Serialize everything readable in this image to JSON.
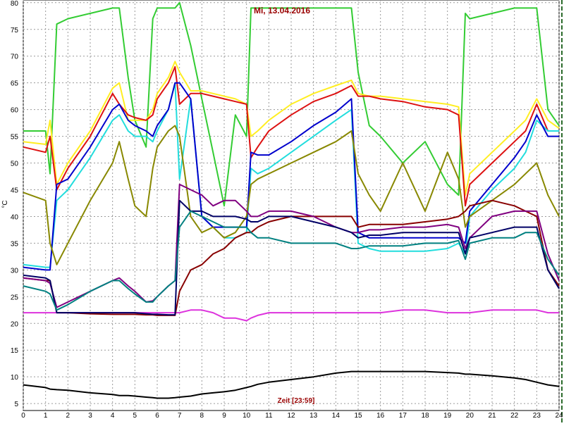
{
  "chart_data": {
    "type": "line",
    "title": "Mi, 13.04.2016",
    "x_label": "Zeit [23:59]",
    "y_label": "°C",
    "xlim": [
      0,
      24
    ],
    "ylim": [
      3.7,
      80.5
    ],
    "xticks": [
      0,
      1,
      2,
      3,
      4,
      5,
      6,
      7,
      8,
      9,
      10,
      11,
      12,
      13,
      14,
      15,
      16,
      17,
      18,
      19,
      20,
      21,
      22,
      23,
      24
    ],
    "yticks": [
      5,
      10,
      15,
      20,
      25,
      30,
      35,
      40,
      45,
      50,
      55,
      60,
      65,
      70,
      75,
      80
    ],
    "grid": true,
    "x": [
      0,
      1,
      1.2,
      1.5,
      2,
      3,
      4,
      4.3,
      4.7,
      5,
      5.5,
      5.8,
      6,
      6.5,
      6.8,
      7,
      7.5,
      8,
      8.5,
      9,
      9.5,
      10,
      10.2,
      10.5,
      11,
      12,
      13,
      14,
      14.7,
      15,
      15.5,
      16,
      17,
      18,
      19,
      19.5,
      19.8,
      20,
      21,
      22,
      22.5,
      23,
      23.5,
      24
    ],
    "series": [
      {
        "color": "#33cc33",
        "values": [
          56,
          56,
          48,
          76,
          77,
          78,
          79,
          79,
          66,
          58,
          53,
          77,
          79,
          79,
          79,
          80,
          72,
          62,
          52,
          42,
          59,
          55,
          79,
          79,
          79,
          79,
          79,
          79,
          79,
          67,
          57,
          55,
          50,
          54,
          46,
          44,
          78,
          77,
          78,
          79,
          79,
          79,
          60,
          57
        ]
      },
      {
        "color": "#ffee22",
        "values": [
          54,
          53.5,
          58,
          46,
          50,
          56,
          64,
          65,
          58,
          58,
          58,
          60,
          63,
          66,
          69,
          67,
          63.5,
          63.5,
          63,
          62.5,
          62,
          61,
          55,
          56,
          58,
          61,
          63,
          64.5,
          65.5,
          63,
          62.5,
          62.5,
          62,
          61.5,
          61,
          60.5,
          44,
          48,
          52,
          56,
          58,
          62,
          58,
          56.5
        ]
      },
      {
        "color": "#dd1111",
        "values": [
          53,
          52,
          55,
          45,
          49,
          55,
          63,
          61,
          59,
          58.5,
          58,
          59,
          62,
          65,
          68,
          61,
          63,
          63,
          62.5,
          62,
          61.5,
          61,
          51,
          53,
          56,
          59,
          61.5,
          63,
          64.5,
          62.5,
          62.5,
          62,
          61.5,
          60.5,
          60,
          59,
          42,
          46,
          50,
          54,
          56,
          61,
          56,
          56
        ]
      },
      {
        "color": "#22dddd",
        "values": [
          31,
          30.5,
          30.5,
          43,
          45,
          51,
          58,
          59,
          56,
          55,
          55,
          54,
          56,
          60,
          65,
          47,
          62,
          40,
          38,
          36,
          36,
          37,
          49,
          48,
          49,
          52,
          55,
          58,
          60,
          35,
          34,
          33.5,
          33.5,
          33.5,
          34,
          35,
          33,
          40,
          45,
          49,
          52,
          58,
          56,
          56
        ]
      },
      {
        "color": "#0000cc",
        "values": [
          30.5,
          30,
          30,
          46,
          47,
          53,
          60,
          61,
          58,
          57,
          56,
          55,
          57,
          60,
          65,
          65,
          62,
          40,
          38,
          38,
          38,
          38,
          52,
          51.5,
          51.5,
          54,
          57,
          59.5,
          62,
          37,
          36,
          36,
          36,
          36,
          36,
          36,
          35,
          41,
          46,
          51,
          54,
          59,
          55,
          55
        ]
      },
      {
        "color": "#888800",
        "values": [
          44.5,
          43,
          35,
          31,
          35,
          43,
          50,
          54,
          47,
          42,
          40,
          49,
          53,
          56,
          57,
          55,
          40,
          37,
          38,
          36,
          37,
          40,
          46,
          47,
          48,
          50,
          52,
          54,
          56,
          48,
          44,
          41,
          50,
          41,
          52,
          47,
          38,
          40,
          43,
          46,
          48,
          50,
          44,
          40
        ]
      },
      {
        "color": "#dd33dd",
        "values": [
          22,
          22,
          22,
          22,
          22,
          22,
          22,
          22,
          22,
          22,
          22,
          22,
          22,
          22,
          22,
          22,
          22.5,
          22.5,
          22,
          21,
          21,
          20.5,
          21,
          21.5,
          22,
          22,
          22,
          22,
          22,
          22,
          22,
          22,
          22.5,
          22.5,
          22,
          22,
          22,
          22,
          22.5,
          22.5,
          22.5,
          22.5,
          22,
          22
        ]
      },
      {
        "color": "#880000",
        "values": [
          28.5,
          28,
          28,
          22,
          22,
          21.8,
          21.7,
          21.7,
          21.7,
          21.7,
          21.6,
          21.6,
          21.5,
          21.5,
          21.5,
          26,
          30,
          31,
          33,
          34,
          36,
          37,
          37,
          38,
          39,
          40,
          40,
          40,
          40,
          38,
          38.5,
          38.5,
          38.5,
          39,
          39.5,
          40,
          41,
          42,
          43,
          42,
          41,
          40,
          30,
          27
        ]
      },
      {
        "color": "#800080",
        "values": [
          28.5,
          28,
          27.5,
          23,
          24,
          26,
          28,
          28.5,
          27,
          26,
          24,
          24.2,
          25,
          27,
          28,
          46,
          45,
          44,
          42,
          43,
          43,
          41,
          40,
          40,
          41,
          41,
          40,
          38,
          37,
          37,
          37.5,
          37.5,
          38,
          38,
          38.5,
          38,
          34,
          36,
          40,
          41,
          41,
          41,
          33,
          28
        ]
      },
      {
        "color": "#000066",
        "values": [
          29,
          28.5,
          28,
          22,
          22,
          22,
          22,
          22,
          22,
          22,
          21.8,
          21.7,
          21.7,
          21.6,
          21.6,
          43,
          41,
          41,
          40,
          40,
          40,
          39.5,
          39,
          39,
          40,
          40,
          39,
          38,
          37,
          36,
          36.5,
          36.5,
          37,
          37,
          37,
          37,
          33,
          36,
          37,
          38,
          38,
          38,
          30,
          26.5
        ]
      },
      {
        "color": "#008080",
        "values": [
          27,
          26,
          25.5,
          22.5,
          23.5,
          26,
          28,
          28,
          26.5,
          25.5,
          24,
          24,
          25,
          27,
          28,
          38,
          41,
          40,
          39,
          38,
          38,
          38,
          37,
          36,
          36,
          35,
          35,
          35,
          34,
          34,
          34.5,
          34.5,
          34.5,
          35,
          35,
          35.5,
          32,
          35,
          36,
          36,
          37,
          37,
          32,
          29
        ]
      },
      {
        "color": "#000000",
        "values": [
          8.5,
          8,
          7.7,
          7.6,
          7.5,
          7,
          6.7,
          6.5,
          6.5,
          6.4,
          6.2,
          6.1,
          6,
          6,
          6.1,
          6.2,
          6.4,
          6.8,
          7,
          7.2,
          7.5,
          8,
          8.2,
          8.6,
          9,
          9.5,
          10,
          10.7,
          11,
          11,
          11,
          11,
          11,
          11,
          10.8,
          10.7,
          10.5,
          10.5,
          10.2,
          9.8,
          9.5,
          9,
          8.5,
          8.2
        ]
      }
    ]
  }
}
